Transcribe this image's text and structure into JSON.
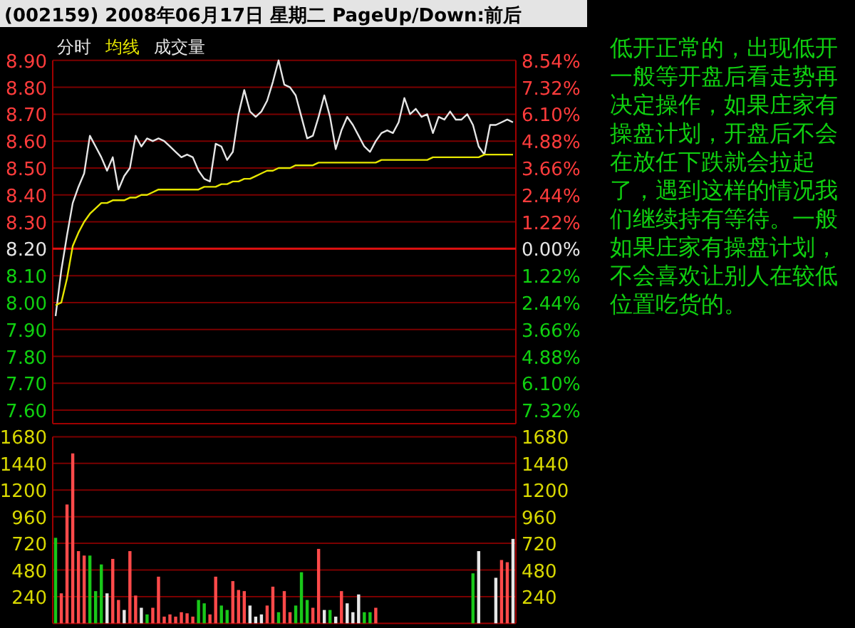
{
  "chart_data": [
    {
      "type": "line",
      "title": "(002159) 2008年06月17日 星期二 PageUp/Down:前后",
      "annotations": [
        "低开正常的，出现低开一般等开盘后看走势再决定操作，如果庄家有操盘计划，开盘后不会在放任下跌就会拉起了，遇到这样的情况我们继续持有等待。一般如果庄家有操盘计划，不会喜欢让别人在较低位置吃货的。"
      ],
      "categories": [
        null,
        null,
        null,
        null,
        null,
        null,
        null,
        null,
        null,
        null,
        null,
        null,
        null,
        null,
        null,
        null,
        null,
        null,
        null,
        null,
        null,
        null,
        null,
        null,
        null,
        null,
        null,
        null,
        null,
        null,
        null,
        null,
        null,
        null,
        null,
        null,
        null,
        null,
        null,
        null,
        null,
        null,
        null,
        null,
        null,
        null,
        null,
        null,
        null,
        null,
        null,
        null,
        null,
        null,
        null,
        null,
        null,
        null,
        null,
        null,
        null,
        null,
        null,
        null,
        null,
        null,
        null,
        null,
        null,
        null,
        null,
        null,
        null,
        null,
        null,
        null,
        null,
        null,
        null,
        null,
        null
      ],
      "ylim": [
        7.55,
        8.9
      ],
      "yticks": [
        {
          "value": 7.6,
          "label": "7.60"
        },
        {
          "value": 7.7,
          "label": "7.70"
        },
        {
          "value": 7.8,
          "label": "7.80"
        },
        {
          "value": 7.9,
          "label": "7.90"
        },
        {
          "value": 8.0,
          "label": "8.00"
        },
        {
          "value": 8.1,
          "label": "8.10"
        },
        {
          "value": 8.2,
          "label": "8.20"
        },
        {
          "value": 8.3,
          "label": "8.30"
        },
        {
          "value": 8.4,
          "label": "8.40"
        },
        {
          "value": 8.5,
          "label": "8.50"
        },
        {
          "value": 8.6,
          "label": "8.60"
        },
        {
          "value": 8.7,
          "label": "8.70"
        },
        {
          "value": 8.8,
          "label": "8.80"
        },
        {
          "value": 8.9,
          "label": "8.90"
        }
      ],
      "y2lim": [
        -7.93,
        8.54
      ],
      "y2ticks": [
        {
          "value": -7.32,
          "label": "7.32%"
        },
        {
          "value": -6.1,
          "label": "6.10%"
        },
        {
          "value": -4.88,
          "label": "4.88%"
        },
        {
          "value": -3.66,
          "label": "3.66%"
        },
        {
          "value": -2.44,
          "label": "2.44%"
        },
        {
          "value": -1.22,
          "label": "1.22%"
        },
        {
          "value": 0,
          "label": "0.00%"
        },
        {
          "value": 1.22,
          "label": "1.22%"
        },
        {
          "value": 2.44,
          "label": "2.44%"
        },
        {
          "value": 3.66,
          "label": "3.66%"
        },
        {
          "value": 4.88,
          "label": "4.88%"
        },
        {
          "value": 6.1,
          "label": "6.10%"
        },
        {
          "value": 7.32,
          "label": "7.32%"
        },
        {
          "value": 8.54,
          "label": "8.54%"
        }
      ],
      "tick_labels": "y",
      "grid": "y",
      "ref_lines": [
        {
          "axis": "y",
          "value": 8.2,
          "color": "#e01010"
        }
      ],
      "series": [
        {
          "name": "分时",
          "color": "#e6e6e6",
          "values": [
            7.95,
            8.12,
            8.25,
            8.37,
            8.43,
            8.48,
            8.62,
            8.58,
            8.54,
            8.49,
            8.54,
            8.42,
            8.47,
            8.5,
            8.62,
            8.58,
            8.61,
            8.6,
            8.61,
            8.6,
            8.58,
            8.56,
            8.54,
            8.55,
            8.54,
            8.49,
            8.46,
            8.45,
            8.59,
            8.58,
            8.53,
            8.56,
            8.7,
            8.79,
            8.71,
            8.69,
            8.71,
            8.75,
            8.82,
            8.9,
            8.81,
            8.8,
            8.77,
            8.69,
            8.61,
            8.62,
            8.69,
            8.77,
            8.69,
            8.57,
            8.64,
            8.69,
            8.66,
            8.62,
            8.58,
            8.56,
            8.6,
            8.63,
            8.64,
            8.63,
            8.67,
            8.76,
            8.7,
            8.72,
            8.69,
            8.7,
            8.63,
            8.69,
            8.68,
            8.71,
            8.68,
            8.68,
            8.7,
            8.66,
            8.58,
            8.55,
            8.66,
            8.66,
            8.67,
            8.68,
            8.67
          ]
        },
        {
          "name": "均线",
          "color": "#e6e600",
          "values": [
            7.99,
            8.0,
            8.09,
            8.21,
            8.26,
            8.3,
            8.33,
            8.35,
            8.37,
            8.37,
            8.38,
            8.38,
            8.38,
            8.39,
            8.39,
            8.4,
            8.4,
            8.41,
            8.42,
            8.42,
            8.42,
            8.42,
            8.42,
            8.42,
            8.42,
            8.42,
            8.43,
            8.43,
            8.43,
            8.44,
            8.44,
            8.45,
            8.45,
            8.46,
            8.46,
            8.47,
            8.48,
            8.49,
            8.49,
            8.5,
            8.5,
            8.5,
            8.51,
            8.51,
            8.51,
            8.51,
            8.52,
            8.52,
            8.52,
            8.52,
            8.52,
            8.52,
            8.52,
            8.52,
            8.52,
            8.52,
            8.52,
            8.53,
            8.53,
            8.53,
            8.53,
            8.53,
            8.53,
            8.53,
            8.53,
            8.53,
            8.54,
            8.54,
            8.54,
            8.54,
            8.54,
            8.54,
            8.54,
            8.54,
            8.54,
            8.55,
            8.55,
            8.55,
            8.55,
            8.55,
            8.55
          ]
        }
      ]
    },
    {
      "type": "bar",
      "categories": [
        null,
        null,
        null,
        null,
        null,
        null,
        null,
        null,
        null,
        null,
        null,
        null,
        null,
        null,
        null,
        null,
        null,
        null,
        null,
        null,
        null,
        null,
        null,
        null,
        null,
        null,
        null,
        null,
        null,
        null,
        null,
        null,
        null,
        null,
        null,
        null,
        null,
        null,
        null,
        null,
        null,
        null,
        null,
        null,
        null,
        null,
        null,
        null,
        null,
        null,
        null,
        null,
        null,
        null,
        null,
        null,
        null,
        null,
        null,
        null,
        null,
        null,
        null,
        null,
        null,
        null,
        null,
        null,
        null,
        null,
        null,
        null,
        null,
        null,
        null,
        null,
        null,
        null,
        null,
        null,
        null
      ],
      "ylim": [
        0,
        1680
      ],
      "yticks": [
        240,
        480,
        720,
        960,
        1200,
        1440,
        1680
      ],
      "y2lim": [
        0,
        1680
      ],
      "y2ticks": [
        240,
        480,
        720,
        960,
        1200,
        1440,
        1680
      ],
      "tick_labels": "y",
      "grid": "y",
      "series": [
        {
          "name": "成交量",
          "values": [
            770,
            270,
            1070,
            1530,
            650,
            610,
            610,
            290,
            530,
            270,
            580,
            210,
            120,
            650,
            250,
            140,
            80,
            140,
            420,
            60,
            80,
            60,
            100,
            90,
            60,
            210,
            180,
            80,
            420,
            160,
            120,
            380,
            300,
            290,
            160,
            60,
            80,
            160,
            330,
            100,
            290,
            100,
            160,
            460,
            210,
            140,
            670,
            120,
            120,
            60,
            290,
            180,
            100,
            260,
            100,
            100,
            140,
            null,
            null,
            null,
            null,
            null,
            null,
            null,
            null,
            null,
            null,
            null,
            null,
            null,
            null,
            null,
            null,
            450,
            650,
            null,
            null,
            410,
            570,
            550,
            760
          ],
          "colors": [
            "#19c819",
            "#ff4a4a",
            "#ff4a4a",
            "#ff4a4a",
            "#ff4a4a",
            "#ff4a4a",
            "#19c819",
            "#19c819",
            "#19c819",
            "#e6e6e6",
            "#ff4a4a",
            "#ff4a4a",
            "#e6e6e6",
            "#ff4a4a",
            "#ff4a4a",
            "#e6e6e6",
            "#19c819",
            "#ff4a4a",
            "#ff4a4a",
            "#ff4a4a",
            "#ff4a4a",
            "#ff4a4a",
            "#ff4a4a",
            "#ff4a4a",
            "#ff4a4a",
            "#19c819",
            "#19c819",
            "#ff4a4a",
            "#ff4a4a",
            "#19c819",
            "#19c819",
            "#ff4a4a",
            "#ff4a4a",
            "#ff4a4a",
            "#e6e6e6",
            "#e6e6e6",
            "#e6e6e6",
            "#ff4a4a",
            "#ff4a4a",
            "#19c819",
            "#ff4a4a",
            "#ff4a4a",
            "#19c819",
            "#19c819",
            "#19c819",
            "#ff4a4a",
            "#ff4a4a",
            "#e6e6e6",
            "#19c819",
            "#e6e6e6",
            "#ff4a4a",
            "#e6e6e6",
            "#e6e6e6",
            "#e6e6e6",
            "#19c819",
            "#19c819",
            "#ff4a4a",
            null,
            null,
            null,
            null,
            null,
            null,
            null,
            null,
            null,
            null,
            null,
            null,
            null,
            null,
            null,
            null,
            "#19c819",
            "#e6e6e6",
            null,
            null,
            "#e6e6e6",
            "#ff4a4a",
            "#ff4a4a",
            "#e6e6e6"
          ]
        }
      ]
    }
  ]
}
